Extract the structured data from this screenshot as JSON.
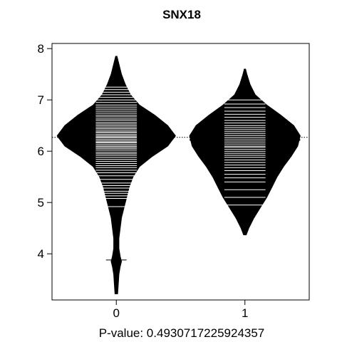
{
  "chart_data": {
    "type": "beanplot",
    "title": "SNX18",
    "xlabel": "P-value: 0.4930717225924357",
    "ylabel": "",
    "categories": [
      "0",
      "1"
    ],
    "xlim": [
      0.5,
      2.5
    ],
    "ylim": [
      3.1,
      8.1
    ],
    "y_ticks": [
      4,
      5,
      6,
      7,
      8
    ],
    "grand_mean_line": 6.27,
    "groups": [
      {
        "name": "0",
        "mean": 6.3,
        "density": [
          [
            3.22,
            0.01
          ],
          [
            3.4,
            0.015
          ],
          [
            3.6,
            0.02
          ],
          [
            3.75,
            0.03
          ],
          [
            3.85,
            0.04
          ],
          [
            3.95,
            0.03
          ],
          [
            4.1,
            0.02
          ],
          [
            4.3,
            0.02
          ],
          [
            4.5,
            0.03
          ],
          [
            4.7,
            0.04
          ],
          [
            4.9,
            0.06
          ],
          [
            5.1,
            0.08
          ],
          [
            5.3,
            0.1
          ],
          [
            5.5,
            0.13
          ],
          [
            5.7,
            0.18
          ],
          [
            5.9,
            0.28
          ],
          [
            6.1,
            0.4
          ],
          [
            6.3,
            0.46
          ],
          [
            6.5,
            0.4
          ],
          [
            6.7,
            0.3
          ],
          [
            6.9,
            0.18
          ],
          [
            7.1,
            0.11
          ],
          [
            7.3,
            0.07
          ],
          [
            7.5,
            0.04
          ],
          [
            7.7,
            0.02
          ],
          [
            7.85,
            0.005
          ]
        ],
        "observations": [
          3.88,
          4.92,
          5.08,
          5.13,
          5.18,
          5.22,
          5.28,
          5.33,
          5.38,
          5.45,
          5.52,
          5.58,
          5.63,
          5.68,
          5.72,
          5.76,
          5.8,
          5.84,
          5.88,
          5.92,
          5.95,
          5.98,
          6.02,
          6.05,
          6.08,
          6.1,
          6.13,
          6.16,
          6.18,
          6.2,
          6.23,
          6.26,
          6.28,
          6.3,
          6.33,
          6.36,
          6.38,
          6.41,
          6.44,
          6.47,
          6.5,
          6.53,
          6.56,
          6.6,
          6.63,
          6.67,
          6.7,
          6.74,
          6.78,
          6.82,
          6.86,
          6.9,
          6.95,
          7.0,
          7.05,
          7.1,
          7.15,
          7.2,
          7.25
        ]
      },
      {
        "name": "1",
        "mean": 6.22,
        "density": [
          [
            4.37,
            0.01
          ],
          [
            4.5,
            0.03
          ],
          [
            4.7,
            0.07
          ],
          [
            4.9,
            0.12
          ],
          [
            5.1,
            0.17
          ],
          [
            5.3,
            0.21
          ],
          [
            5.5,
            0.25
          ],
          [
            5.7,
            0.3
          ],
          [
            5.9,
            0.36
          ],
          [
            6.1,
            0.41
          ],
          [
            6.3,
            0.43
          ],
          [
            6.5,
            0.38
          ],
          [
            6.7,
            0.28
          ],
          [
            6.9,
            0.17
          ],
          [
            7.1,
            0.08
          ],
          [
            7.3,
            0.04
          ],
          [
            7.5,
            0.015
          ],
          [
            7.6,
            0.005
          ]
        ],
        "observations": [
          4.95,
          5.1,
          5.25,
          5.4,
          5.48,
          5.55,
          5.62,
          5.68,
          5.73,
          5.78,
          5.83,
          5.88,
          5.92,
          5.96,
          6.0,
          6.04,
          6.08,
          6.1,
          6.14,
          6.18,
          6.22,
          6.26,
          6.3,
          6.34,
          6.38,
          6.42,
          6.46,
          6.5,
          6.55,
          6.6,
          6.66,
          6.72,
          6.78,
          6.85,
          6.92,
          7.0
        ]
      }
    ]
  }
}
